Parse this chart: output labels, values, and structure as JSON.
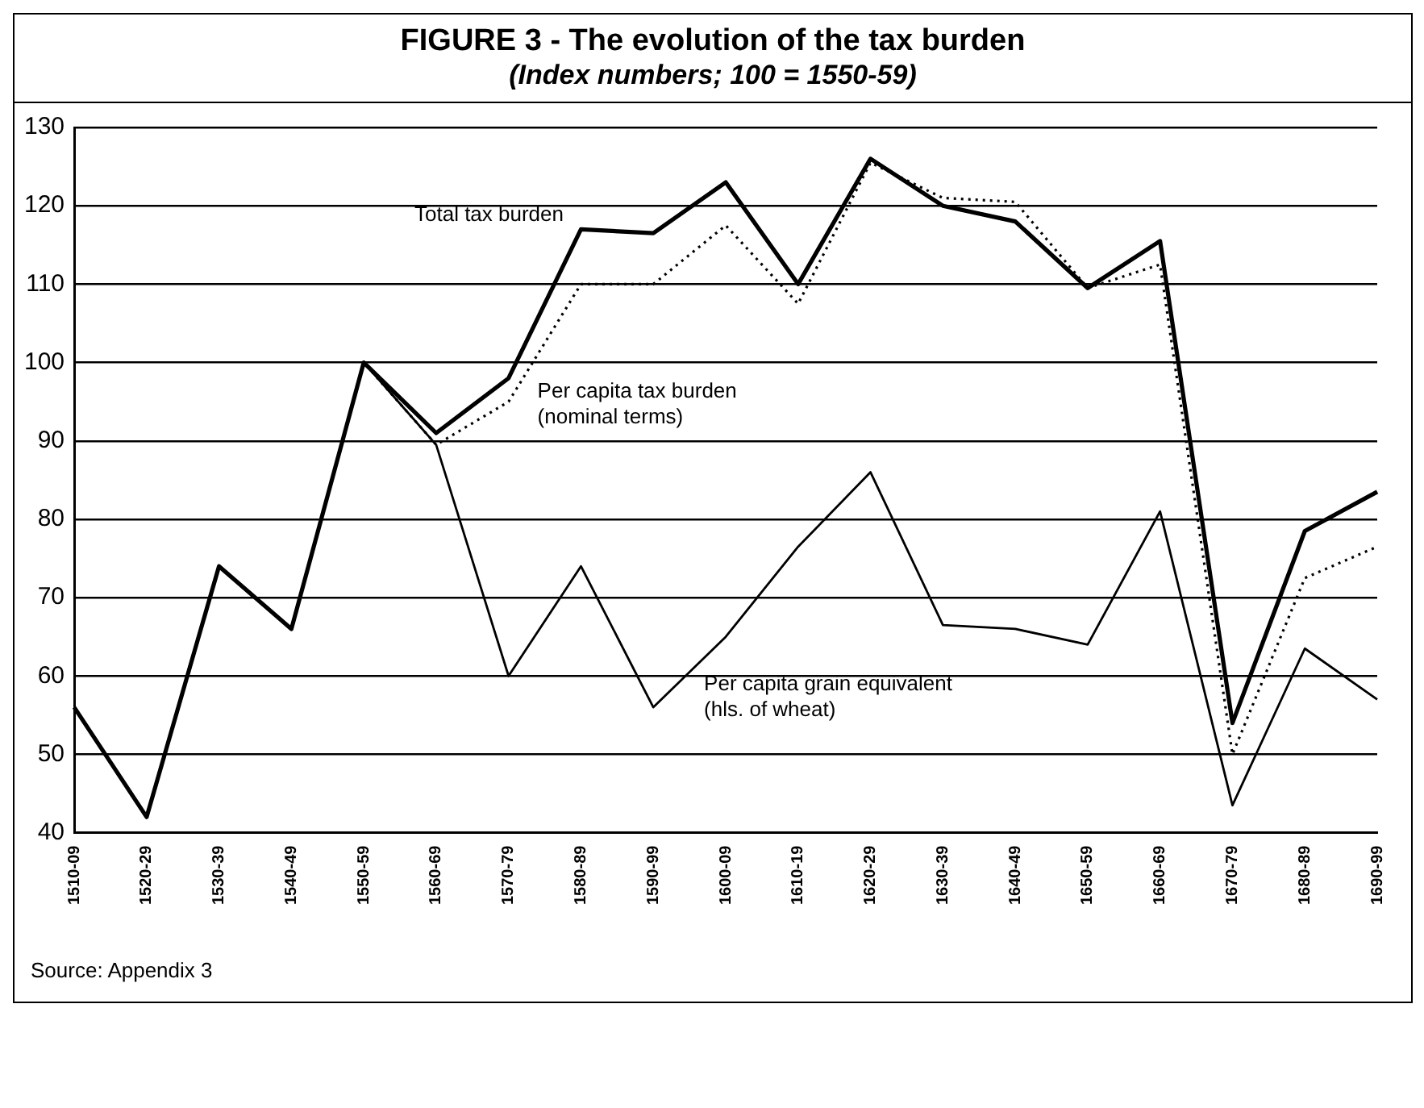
{
  "chart_data": {
    "type": "line",
    "title": "FIGURE 3 - The evolution of the tax burden",
    "subtitle": "(Index numbers; 100 = 1550-59)",
    "categories": [
      "1510-09",
      "1520-29",
      "1530-39",
      "1540-49",
      "1550-59",
      "1560-69",
      "1570-79",
      "1580-89",
      "1590-99",
      "1600-09",
      "1610-19",
      "1620-29",
      "1630-39",
      "1640-49",
      "1650-59",
      "1660-69",
      "1670-79",
      "1680-89",
      "1690-99"
    ],
    "series": [
      {
        "name": "Total tax burden",
        "color": "#000000",
        "line_style": "solid",
        "values": [
          56,
          42,
          74,
          66,
          100,
          91,
          98,
          117,
          116.5,
          123,
          110,
          126,
          120,
          118,
          109.5,
          115.5,
          54,
          78.5,
          83.5
        ]
      },
      {
        "name": "Per capita tax burden\n(nominal terms)",
        "color": "#000000",
        "line_style": "dotted",
        "values": [
          56,
          42,
          74,
          66,
          100,
          89.5,
          95,
          110,
          110,
          117.5,
          107.5,
          125.5,
          121,
          120.5,
          109.5,
          112.5,
          50,
          72.5,
          76.5
        ]
      },
      {
        "name": "Per capita grain equivalent\n(hls. of wheat)",
        "color": "#000000",
        "line_style": "solid",
        "values": [
          56,
          42,
          74,
          66,
          100,
          89.5,
          60,
          74,
          56,
          65,
          76.5,
          86,
          66.5,
          66,
          64,
          81,
          43.5,
          63.5,
          57
        ]
      }
    ],
    "ylim": [
      40,
      130
    ],
    "yticks": [
      40,
      50,
      60,
      70,
      80,
      90,
      100,
      110,
      120,
      130
    ],
    "grid": "y",
    "legend": false,
    "marker": "none",
    "annotations": [
      "Source: Appendix 3"
    ]
  }
}
